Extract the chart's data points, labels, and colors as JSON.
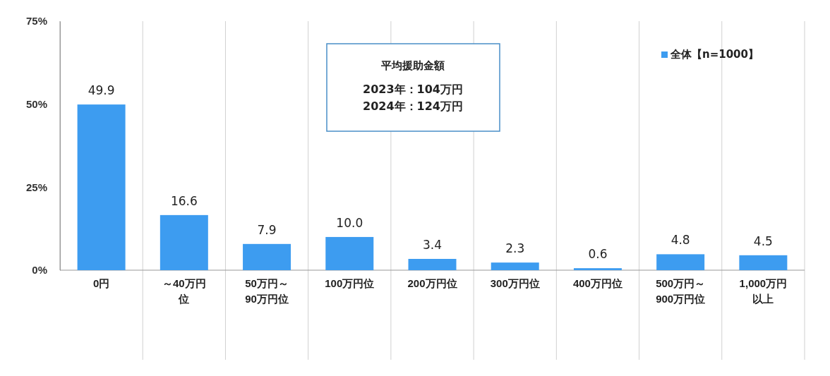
{
  "chart_data": {
    "type": "bar",
    "categories": [
      "0円",
      "～40万円位",
      "50万円～90万円位",
      "100万円位",
      "200万円位",
      "300万円位",
      "400万円位",
      "500万円～900万円位",
      "1,000万円以上"
    ],
    "series": [
      {
        "name": "全体【n=1000】",
        "color": "#3d9cf0",
        "values": [
          49.9,
          16.6,
          7.9,
          10.0,
          3.4,
          2.3,
          0.6,
          4.8,
          4.5
        ]
      }
    ],
    "value_labels": [
      "49.9",
      "16.6",
      "7.9",
      "10.0",
      "3.4",
      "2.3",
      "0.6",
      "4.8",
      "4.5"
    ],
    "ylim": [
      0,
      75
    ],
    "yticks": [
      {
        "value": 0,
        "label": "0%"
      },
      {
        "value": 25,
        "label": "25%"
      },
      {
        "value": 50,
        "label": "50%"
      },
      {
        "value": 75,
        "label": "75%"
      }
    ],
    "grid": false,
    "legend": "top right",
    "annotations": [
      "平均援助金額",
      "2023年：104万円",
      "2024年：124万円"
    ]
  }
}
